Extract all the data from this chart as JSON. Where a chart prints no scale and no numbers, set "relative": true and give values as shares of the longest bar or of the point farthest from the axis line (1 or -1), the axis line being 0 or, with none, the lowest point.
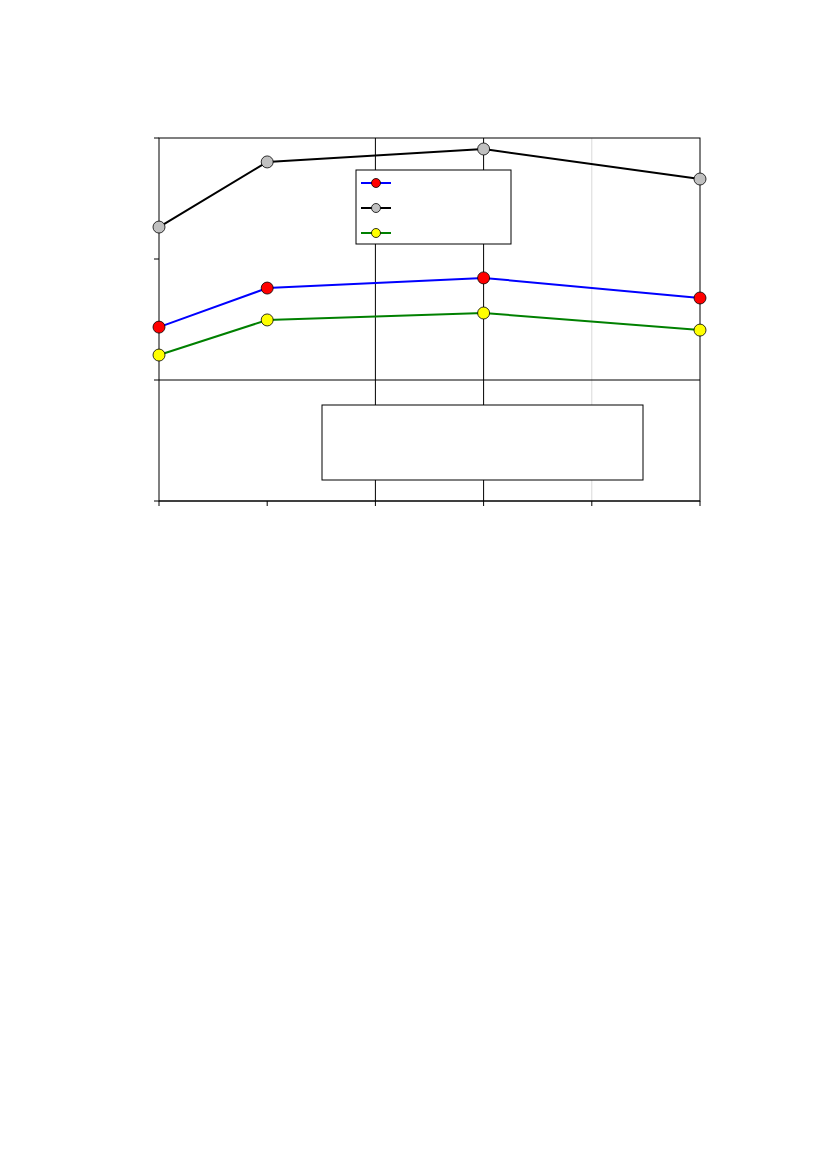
{
  "chart_data": {
    "type": "line",
    "relative": true,
    "categories": [
      null,
      null,
      null,
      null,
      null,
      null
    ],
    "series": [
      {
        "color": "#0000ff",
        "colors": [
          "#ff0000",
          "#ff0000",
          null,
          "#ff0000",
          null,
          "#ff0000"
        ],
        "values": [
          0.229,
          0.398,
          null,
          0.442,
          null,
          0.355
        ]
      },
      {
        "color": "#000000",
        "colors": [
          "#c0c0c0",
          "#c0c0c0",
          null,
          "#c0c0c0",
          null,
          "#c0c0c0"
        ],
        "values": [
          0.662,
          0.944,
          null,
          1,
          null,
          0.87
        ]
      },
      {
        "color": "#008000",
        "colors": [
          "#ffff00",
          "#ffff00",
          null,
          "#ffff00",
          null,
          "#ffff00"
        ],
        "values": [
          0.108,
          0.26,
          null,
          0.29,
          null,
          0.216
        ]
      }
    ],
    "marker": "circle",
    "line_style": "solid"
  }
}
